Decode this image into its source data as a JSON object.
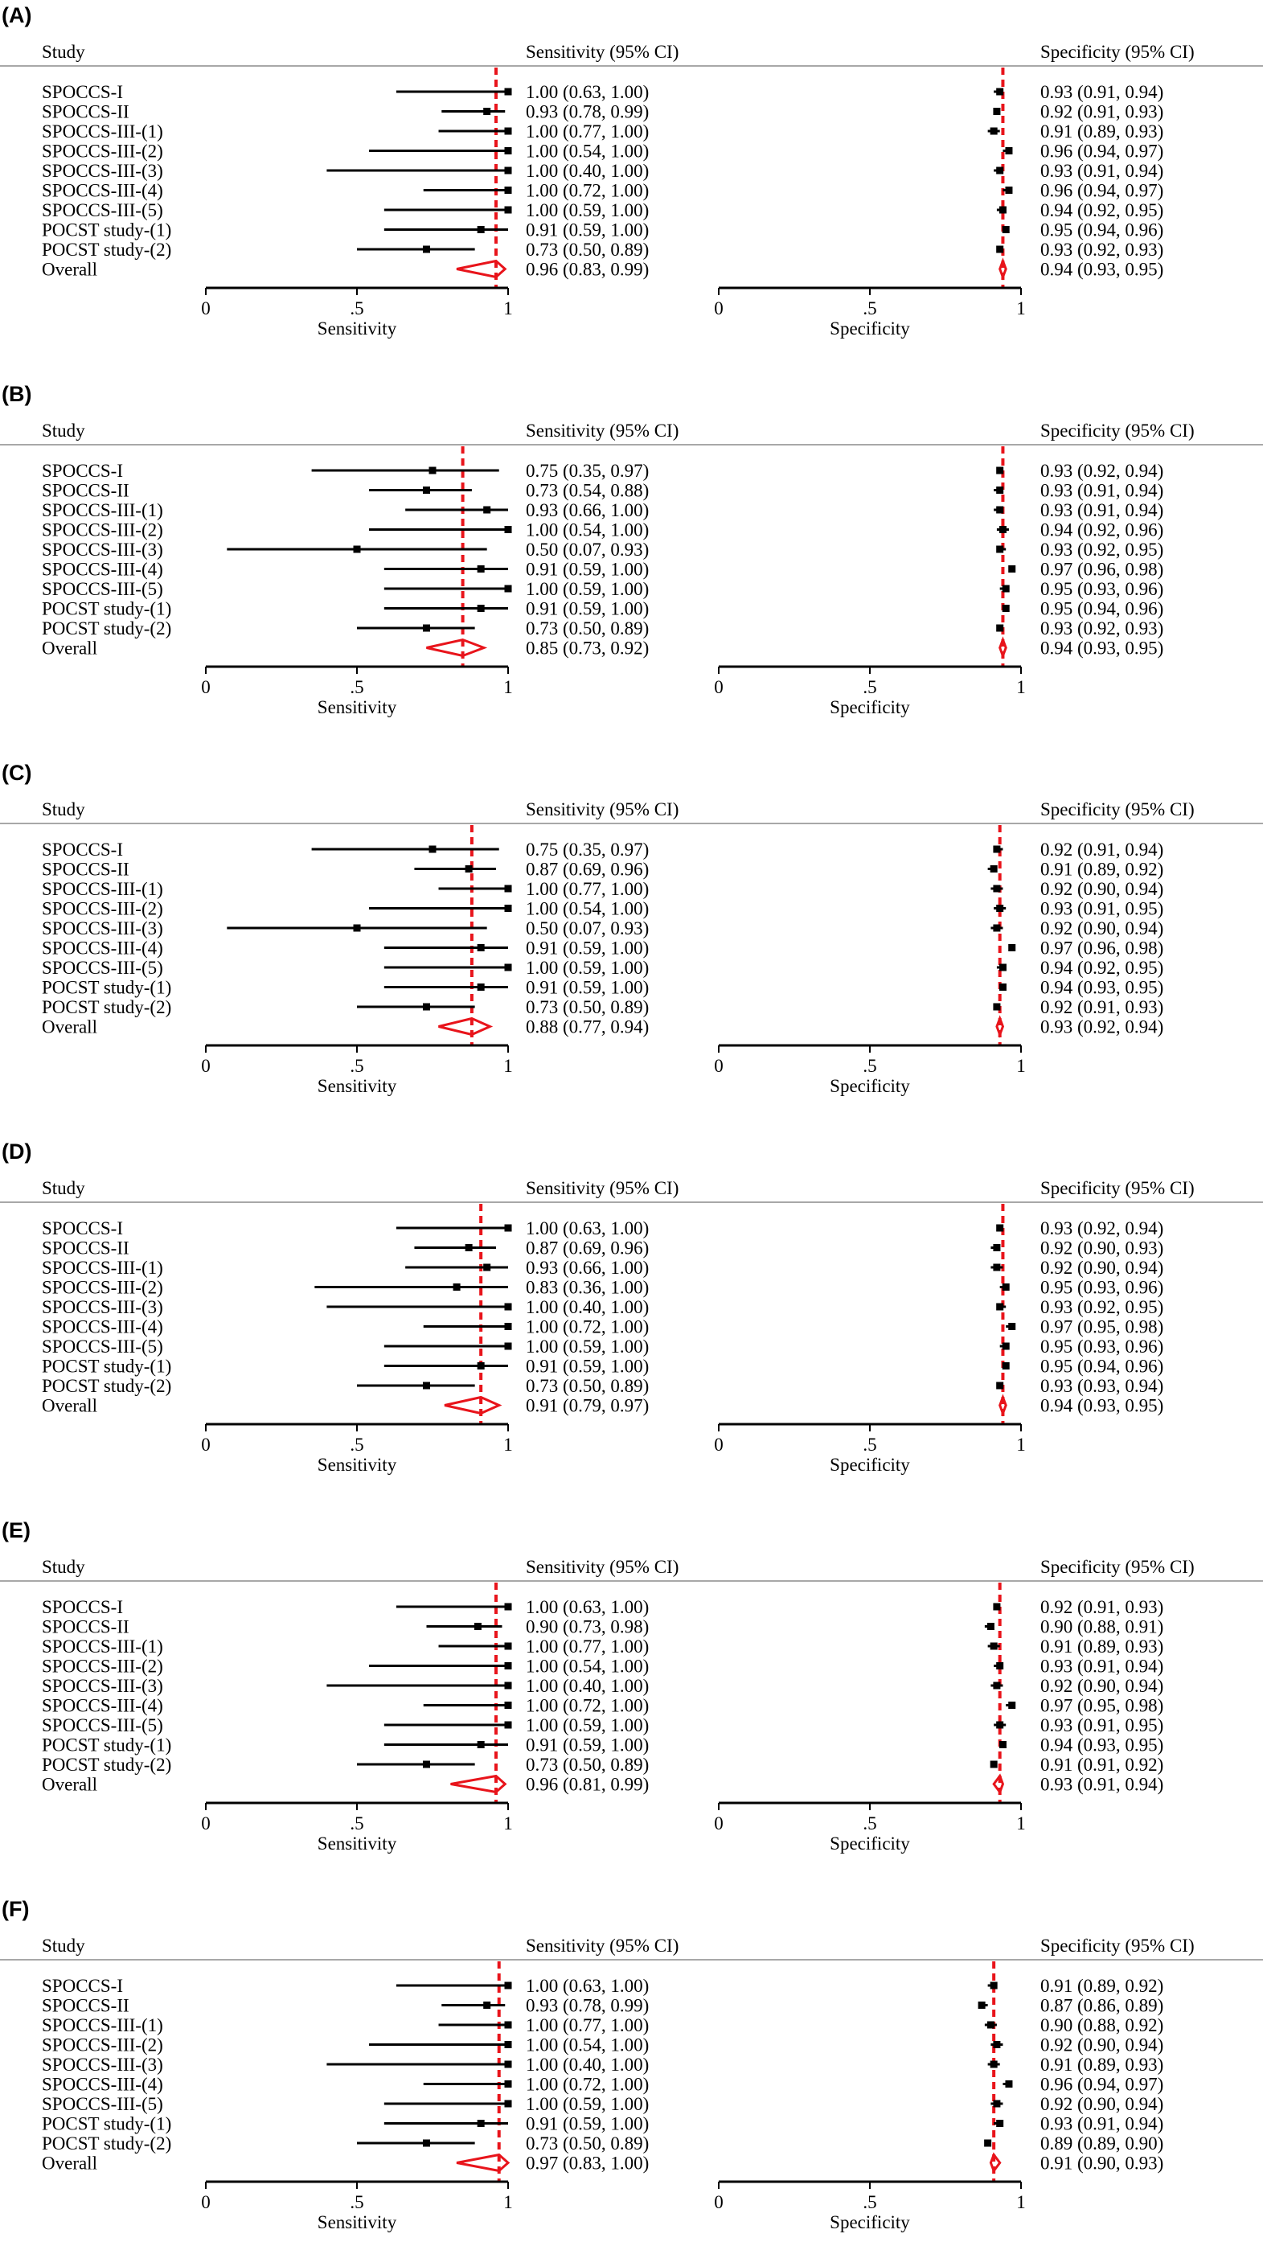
{
  "chart_data": [
    {
      "type": "forest",
      "panel": "(A)",
      "study_header": "Study",
      "sens_header": "Sensitivity (95% CI)",
      "spec_header": "Specificity (95% CI)",
      "sens_axis_label": "Sensitivity",
      "spec_axis_label": "Specificity",
      "ticks": [
        "0",
        ".5",
        "1"
      ],
      "xlim": [
        0,
        1
      ],
      "studies": [
        "SPOCCS-I",
        "SPOCCS-II",
        "SPOCCS-III-(1)",
        "SPOCCS-III-(2)",
        "SPOCCS-III-(3)",
        "SPOCCS-III-(4)",
        "SPOCCS-III-(5)",
        "POCST study-(1)",
        "POCST study-(2)",
        "Overall"
      ],
      "sensitivity": [
        [
          1.0,
          0.63,
          1.0
        ],
        [
          0.93,
          0.78,
          0.99
        ],
        [
          1.0,
          0.77,
          1.0
        ],
        [
          1.0,
          0.54,
          1.0
        ],
        [
          1.0,
          0.4,
          1.0
        ],
        [
          1.0,
          0.72,
          1.0
        ],
        [
          1.0,
          0.59,
          1.0
        ],
        [
          0.91,
          0.59,
          1.0
        ],
        [
          0.73,
          0.5,
          0.89
        ],
        [
          0.96,
          0.83,
          0.99
        ]
      ],
      "specificity": [
        [
          0.93,
          0.91,
          0.94
        ],
        [
          0.92,
          0.91,
          0.93
        ],
        [
          0.91,
          0.89,
          0.93
        ],
        [
          0.96,
          0.94,
          0.97
        ],
        [
          0.93,
          0.91,
          0.94
        ],
        [
          0.96,
          0.94,
          0.97
        ],
        [
          0.94,
          0.92,
          0.95
        ],
        [
          0.95,
          0.94,
          0.96
        ],
        [
          0.93,
          0.92,
          0.93
        ],
        [
          0.94,
          0.93,
          0.95
        ]
      ],
      "sens_text": [
        "1.00 (0.63, 1.00)",
        "0.93 (0.78, 0.99)",
        "1.00 (0.77, 1.00)",
        "1.00 (0.54, 1.00)",
        "1.00 (0.40, 1.00)",
        "1.00 (0.72, 1.00)",
        "1.00 (0.59, 1.00)",
        "0.91 (0.59, 1.00)",
        "0.73 (0.50, 0.89)",
        "0.96 (0.83, 0.99)"
      ],
      "spec_text": [
        "0.93 (0.91, 0.94)",
        "0.92 (0.91, 0.93)",
        "0.91 (0.89, 0.93)",
        "0.96 (0.94, 0.97)",
        "0.93 (0.91, 0.94)",
        "0.96 (0.94, 0.97)",
        "0.94 (0.92, 0.95)",
        "0.95 (0.94, 0.96)",
        "0.93 (0.92, 0.93)",
        "0.94 (0.93, 0.95)"
      ]
    },
    {
      "type": "forest",
      "panel": "(B)",
      "study_header": "Study",
      "sens_header": "Sensitivity (95% CI)",
      "spec_header": "Specificity (95% CI)",
      "sens_axis_label": "Sensitivity",
      "spec_axis_label": "Specificity",
      "ticks": [
        "0",
        ".5",
        "1"
      ],
      "xlim": [
        0,
        1
      ],
      "studies": [
        "SPOCCS-I",
        "SPOCCS-II",
        "SPOCCS-III-(1)",
        "SPOCCS-III-(2)",
        "SPOCCS-III-(3)",
        "SPOCCS-III-(4)",
        "SPOCCS-III-(5)",
        "POCST study-(1)",
        "POCST study-(2)",
        "Overall"
      ],
      "sensitivity": [
        [
          0.75,
          0.35,
          0.97
        ],
        [
          0.73,
          0.54,
          0.88
        ],
        [
          0.93,
          0.66,
          1.0
        ],
        [
          1.0,
          0.54,
          1.0
        ],
        [
          0.5,
          0.07,
          0.93
        ],
        [
          0.91,
          0.59,
          1.0
        ],
        [
          1.0,
          0.59,
          1.0
        ],
        [
          0.91,
          0.59,
          1.0
        ],
        [
          0.73,
          0.5,
          0.89
        ],
        [
          0.85,
          0.73,
          0.92
        ]
      ],
      "specificity": [
        [
          0.93,
          0.92,
          0.94
        ],
        [
          0.93,
          0.91,
          0.94
        ],
        [
          0.93,
          0.91,
          0.94
        ],
        [
          0.94,
          0.92,
          0.96
        ],
        [
          0.93,
          0.92,
          0.95
        ],
        [
          0.97,
          0.96,
          0.98
        ],
        [
          0.95,
          0.93,
          0.96
        ],
        [
          0.95,
          0.94,
          0.96
        ],
        [
          0.93,
          0.92,
          0.93
        ],
        [
          0.94,
          0.93,
          0.95
        ]
      ],
      "sens_text": [
        "0.75 (0.35, 0.97)",
        "0.73 (0.54, 0.88)",
        "0.93 (0.66, 1.00)",
        "1.00 (0.54, 1.00)",
        "0.50 (0.07, 0.93)",
        "0.91 (0.59, 1.00)",
        "1.00 (0.59, 1.00)",
        "0.91 (0.59, 1.00)",
        "0.73 (0.50, 0.89)",
        "0.85 (0.73, 0.92)"
      ],
      "spec_text": [
        "0.93 (0.92, 0.94)",
        "0.93 (0.91, 0.94)",
        "0.93 (0.91, 0.94)",
        "0.94 (0.92, 0.96)",
        "0.93 (0.92, 0.95)",
        "0.97 (0.96, 0.98)",
        "0.95 (0.93, 0.96)",
        "0.95 (0.94, 0.96)",
        "0.93 (0.92, 0.93)",
        "0.94 (0.93, 0.95)"
      ]
    },
    {
      "type": "forest",
      "panel": "(C)",
      "study_header": "Study",
      "sens_header": "Sensitivity (95% CI)",
      "spec_header": "Specificity (95% CI)",
      "sens_axis_label": "Sensitivity",
      "spec_axis_label": "Specificity",
      "ticks": [
        "0",
        ".5",
        "1"
      ],
      "xlim": [
        0,
        1
      ],
      "studies": [
        "SPOCCS-I",
        "SPOCCS-II",
        "SPOCCS-III-(1)",
        "SPOCCS-III-(2)",
        "SPOCCS-III-(3)",
        "SPOCCS-III-(4)",
        "SPOCCS-III-(5)",
        "POCST study-(1)",
        "POCST study-(2)",
        "Overall"
      ],
      "sensitivity": [
        [
          0.75,
          0.35,
          0.97
        ],
        [
          0.87,
          0.69,
          0.96
        ],
        [
          1.0,
          0.77,
          1.0
        ],
        [
          1.0,
          0.54,
          1.0
        ],
        [
          0.5,
          0.07,
          0.93
        ],
        [
          0.91,
          0.59,
          1.0
        ],
        [
          1.0,
          0.59,
          1.0
        ],
        [
          0.91,
          0.59,
          1.0
        ],
        [
          0.73,
          0.5,
          0.89
        ],
        [
          0.88,
          0.77,
          0.94
        ]
      ],
      "specificity": [
        [
          0.92,
          0.91,
          0.94
        ],
        [
          0.91,
          0.89,
          0.92
        ],
        [
          0.92,
          0.9,
          0.94
        ],
        [
          0.93,
          0.91,
          0.95
        ],
        [
          0.92,
          0.9,
          0.94
        ],
        [
          0.97,
          0.96,
          0.98
        ],
        [
          0.94,
          0.92,
          0.95
        ],
        [
          0.94,
          0.93,
          0.95
        ],
        [
          0.92,
          0.91,
          0.93
        ],
        [
          0.93,
          0.92,
          0.94
        ]
      ],
      "sens_text": [
        "0.75 (0.35, 0.97)",
        "0.87 (0.69, 0.96)",
        "1.00 (0.77, 1.00)",
        "1.00 (0.54, 1.00)",
        "0.50 (0.07, 0.93)",
        "0.91 (0.59, 1.00)",
        "1.00 (0.59, 1.00)",
        "0.91 (0.59, 1.00)",
        "0.73 (0.50, 0.89)",
        "0.88 (0.77, 0.94)"
      ],
      "spec_text": [
        "0.92 (0.91, 0.94)",
        "0.91 (0.89, 0.92)",
        "0.92 (0.90, 0.94)",
        "0.93 (0.91, 0.95)",
        "0.92 (0.90, 0.94)",
        "0.97 (0.96, 0.98)",
        "0.94 (0.92, 0.95)",
        "0.94 (0.93, 0.95)",
        "0.92 (0.91, 0.93)",
        "0.93 (0.92, 0.94)"
      ]
    },
    {
      "type": "forest",
      "panel": "(D)",
      "study_header": "Study",
      "sens_header": "Sensitivity (95% CI)",
      "spec_header": "Specificity (95% CI)",
      "sens_axis_label": "Sensitivity",
      "spec_axis_label": "Specificity",
      "ticks": [
        "0",
        ".5",
        "1"
      ],
      "xlim": [
        0,
        1
      ],
      "studies": [
        "SPOCCS-I",
        "SPOCCS-II",
        "SPOCCS-III-(1)",
        "SPOCCS-III-(2)",
        "SPOCCS-III-(3)",
        "SPOCCS-III-(4)",
        "SPOCCS-III-(5)",
        "POCST study-(1)",
        "POCST study-(2)",
        "Overall"
      ],
      "sensitivity": [
        [
          1.0,
          0.63,
          1.0
        ],
        [
          0.87,
          0.69,
          0.96
        ],
        [
          0.93,
          0.66,
          1.0
        ],
        [
          0.83,
          0.36,
          1.0
        ],
        [
          1.0,
          0.4,
          1.0
        ],
        [
          1.0,
          0.72,
          1.0
        ],
        [
          1.0,
          0.59,
          1.0
        ],
        [
          0.91,
          0.59,
          1.0
        ],
        [
          0.73,
          0.5,
          0.89
        ],
        [
          0.91,
          0.79,
          0.97
        ]
      ],
      "specificity": [
        [
          0.93,
          0.92,
          0.94
        ],
        [
          0.92,
          0.9,
          0.93
        ],
        [
          0.92,
          0.9,
          0.94
        ],
        [
          0.95,
          0.93,
          0.96
        ],
        [
          0.93,
          0.92,
          0.95
        ],
        [
          0.97,
          0.95,
          0.98
        ],
        [
          0.95,
          0.93,
          0.96
        ],
        [
          0.95,
          0.94,
          0.96
        ],
        [
          0.93,
          0.93,
          0.94
        ],
        [
          0.94,
          0.93,
          0.95
        ]
      ],
      "sens_text": [
        "1.00 (0.63, 1.00)",
        "0.87 (0.69, 0.96)",
        "0.93 (0.66, 1.00)",
        "0.83 (0.36, 1.00)",
        "1.00 (0.40, 1.00)",
        "1.00 (0.72, 1.00)",
        "1.00 (0.59, 1.00)",
        "0.91 (0.59, 1.00)",
        "0.73 (0.50, 0.89)",
        "0.91 (0.79, 0.97)"
      ],
      "spec_text": [
        "0.93 (0.92, 0.94)",
        "0.92 (0.90, 0.93)",
        "0.92 (0.90, 0.94)",
        "0.95 (0.93, 0.96)",
        "0.93 (0.92, 0.95)",
        "0.97 (0.95, 0.98)",
        "0.95 (0.93, 0.96)",
        "0.95 (0.94, 0.96)",
        "0.93 (0.93, 0.94)",
        "0.94 (0.93, 0.95)"
      ]
    },
    {
      "type": "forest",
      "panel": "(E)",
      "study_header": "Study",
      "sens_header": "Sensitivity (95% CI)",
      "spec_header": "Specificity (95% CI)",
      "sens_axis_label": "Sensitivity",
      "spec_axis_label": "Specificity",
      "ticks": [
        "0",
        ".5",
        "1"
      ],
      "xlim": [
        0,
        1
      ],
      "studies": [
        "SPOCCS-I",
        "SPOCCS-II",
        "SPOCCS-III-(1)",
        "SPOCCS-III-(2)",
        "SPOCCS-III-(3)",
        "SPOCCS-III-(4)",
        "SPOCCS-III-(5)",
        "POCST study-(1)",
        "POCST study-(2)",
        "Overall"
      ],
      "sensitivity": [
        [
          1.0,
          0.63,
          1.0
        ],
        [
          0.9,
          0.73,
          0.98
        ],
        [
          1.0,
          0.77,
          1.0
        ],
        [
          1.0,
          0.54,
          1.0
        ],
        [
          1.0,
          0.4,
          1.0
        ],
        [
          1.0,
          0.72,
          1.0
        ],
        [
          1.0,
          0.59,
          1.0
        ],
        [
          0.91,
          0.59,
          1.0
        ],
        [
          0.73,
          0.5,
          0.89
        ],
        [
          0.96,
          0.81,
          0.99
        ]
      ],
      "specificity": [
        [
          0.92,
          0.91,
          0.93
        ],
        [
          0.9,
          0.88,
          0.91
        ],
        [
          0.91,
          0.89,
          0.93
        ],
        [
          0.93,
          0.91,
          0.94
        ],
        [
          0.92,
          0.9,
          0.94
        ],
        [
          0.97,
          0.95,
          0.98
        ],
        [
          0.93,
          0.91,
          0.95
        ],
        [
          0.94,
          0.93,
          0.95
        ],
        [
          0.91,
          0.91,
          0.92
        ],
        [
          0.93,
          0.91,
          0.94
        ]
      ],
      "sens_text": [
        "1.00 (0.63, 1.00)",
        "0.90 (0.73, 0.98)",
        "1.00 (0.77, 1.00)",
        "1.00 (0.54, 1.00)",
        "1.00 (0.40, 1.00)",
        "1.00 (0.72, 1.00)",
        "1.00 (0.59, 1.00)",
        "0.91 (0.59, 1.00)",
        "0.73 (0.50, 0.89)",
        "0.96 (0.81, 0.99)"
      ],
      "spec_text": [
        "0.92 (0.91, 0.93)",
        "0.90 (0.88, 0.91)",
        "0.91 (0.89, 0.93)",
        "0.93 (0.91, 0.94)",
        "0.92 (0.90, 0.94)",
        "0.97 (0.95, 0.98)",
        "0.93 (0.91, 0.95)",
        "0.94 (0.93, 0.95)",
        "0.91 (0.91, 0.92)",
        "0.93 (0.91, 0.94)"
      ]
    },
    {
      "type": "forest",
      "panel": "(F)",
      "study_header": "Study",
      "sens_header": "Sensitivity (95% CI)",
      "spec_header": "Specificity (95% CI)",
      "sens_axis_label": "Sensitivity",
      "spec_axis_label": "Specificity",
      "ticks": [
        "0",
        ".5",
        "1"
      ],
      "xlim": [
        0,
        1
      ],
      "studies": [
        "SPOCCS-I",
        "SPOCCS-II",
        "SPOCCS-III-(1)",
        "SPOCCS-III-(2)",
        "SPOCCS-III-(3)",
        "SPOCCS-III-(4)",
        "SPOCCS-III-(5)",
        "POCST study-(1)",
        "POCST study-(2)",
        "Overall"
      ],
      "sensitivity": [
        [
          1.0,
          0.63,
          1.0
        ],
        [
          0.93,
          0.78,
          0.99
        ],
        [
          1.0,
          0.77,
          1.0
        ],
        [
          1.0,
          0.54,
          1.0
        ],
        [
          1.0,
          0.4,
          1.0
        ],
        [
          1.0,
          0.72,
          1.0
        ],
        [
          1.0,
          0.59,
          1.0
        ],
        [
          0.91,
          0.59,
          1.0
        ],
        [
          0.73,
          0.5,
          0.89
        ],
        [
          0.97,
          0.83,
          1.0
        ]
      ],
      "specificity": [
        [
          0.91,
          0.89,
          0.92
        ],
        [
          0.87,
          0.86,
          0.89
        ],
        [
          0.9,
          0.88,
          0.92
        ],
        [
          0.92,
          0.9,
          0.94
        ],
        [
          0.91,
          0.89,
          0.93
        ],
        [
          0.96,
          0.94,
          0.97
        ],
        [
          0.92,
          0.9,
          0.94
        ],
        [
          0.93,
          0.91,
          0.94
        ],
        [
          0.89,
          0.89,
          0.9
        ],
        [
          0.91,
          0.9,
          0.93
        ]
      ],
      "sens_text": [
        "1.00 (0.63, 1.00)",
        "0.93 (0.78, 0.99)",
        "1.00 (0.77, 1.00)",
        "1.00 (0.54, 1.00)",
        "1.00 (0.40, 1.00)",
        "1.00 (0.72, 1.00)",
        "1.00 (0.59, 1.00)",
        "0.91 (0.59, 1.00)",
        "0.73 (0.50, 0.89)",
        "0.97 (0.83, 1.00)"
      ],
      "spec_text": [
        "0.91 (0.89, 0.92)",
        "0.87 (0.86, 0.89)",
        "0.90 (0.88, 0.92)",
        "0.92 (0.90, 0.94)",
        "0.91 (0.89, 0.93)",
        "0.96 (0.94, 0.97)",
        "0.92 (0.90, 0.94)",
        "0.93 (0.91, 0.94)",
        "0.89 (0.89, 0.90)",
        "0.91 (0.90, 0.93)"
      ]
    }
  ]
}
